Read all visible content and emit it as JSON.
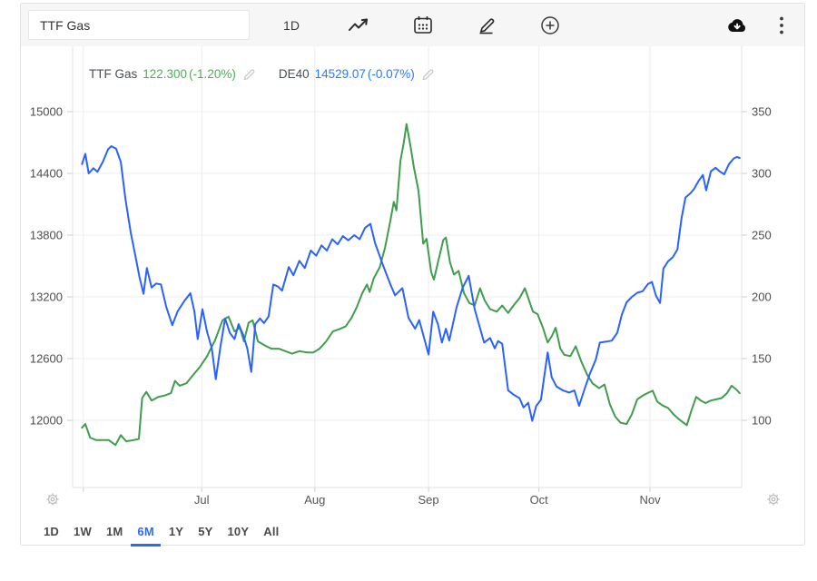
{
  "toolbar": {
    "symbol_input": {
      "value": "TTF Gas"
    },
    "interval_label": "1D",
    "icons": [
      "line-chart",
      "calendar",
      "pencil",
      "plus-circle",
      "cloud-download",
      "kebab-menu"
    ]
  },
  "legend": [
    {
      "name": "TTF Gas",
      "last": "122.300",
      "change": "(-1.20%)",
      "color": "#4caf50"
    },
    {
      "name": "DE40",
      "last": "14529.07",
      "change": "(-0.07%)",
      "color": "#2979ff"
    }
  ],
  "ranges": {
    "options": [
      "1D",
      "1W",
      "1M",
      "6M",
      "1Y",
      "5Y",
      "10Y",
      "All"
    ],
    "active": "6M"
  },
  "chart_data": {
    "type": "line",
    "grid": true,
    "legend_position": "top-left",
    "x_axis": {
      "months": [
        {
          "label": "",
          "f": 0.016
        },
        {
          "label": "Jul",
          "f": 0.193
        },
        {
          "label": "Aug",
          "f": 0.362
        },
        {
          "label": "Sep",
          "f": 0.532
        },
        {
          "label": "Oct",
          "f": 0.697
        },
        {
          "label": "Nov",
          "f": 0.863
        }
      ]
    },
    "left_axis": {
      "ticks": [
        15000,
        14400,
        13800,
        13200,
        12600,
        12000
      ],
      "top_value": 15000,
      "bottom_value": 12000
    },
    "right_axis": {
      "ticks": [
        350,
        300,
        250,
        200,
        150,
        100
      ],
      "top_value": 350,
      "bottom_value": 100
    },
    "series": [
      {
        "name": "TTF Gas",
        "axis": "right",
        "color": "#3f9d4c",
        "last": 122.3,
        "change_pct": -1.2,
        "points": [
          [
            0.014,
            94
          ],
          [
            0.019,
            97
          ],
          [
            0.026,
            86
          ],
          [
            0.035,
            84
          ],
          [
            0.045,
            84
          ],
          [
            0.054,
            84
          ],
          [
            0.064,
            80
          ],
          [
            0.072,
            88
          ],
          [
            0.08,
            83
          ],
          [
            0.091,
            84
          ],
          [
            0.099,
            85
          ],
          [
            0.104,
            118
          ],
          [
            0.11,
            123
          ],
          [
            0.118,
            116
          ],
          [
            0.128,
            119
          ],
          [
            0.137,
            120
          ],
          [
            0.147,
            122
          ],
          [
            0.153,
            132
          ],
          [
            0.16,
            128
          ],
          [
            0.17,
            130
          ],
          [
            0.179,
            136
          ],
          [
            0.19,
            143
          ],
          [
            0.201,
            152
          ],
          [
            0.213,
            165
          ],
          [
            0.224,
            181
          ],
          [
            0.233,
            184
          ],
          [
            0.242,
            172
          ],
          [
            0.25,
            175
          ],
          [
            0.256,
            164
          ],
          [
            0.263,
            179
          ],
          [
            0.269,
            181
          ],
          [
            0.277,
            164
          ],
          [
            0.286,
            161
          ],
          [
            0.297,
            158
          ],
          [
            0.308,
            158
          ],
          [
            0.318,
            156
          ],
          [
            0.328,
            154
          ],
          [
            0.339,
            156
          ],
          [
            0.35,
            155
          ],
          [
            0.36,
            155
          ],
          [
            0.369,
            158
          ],
          [
            0.379,
            164
          ],
          [
            0.389,
            172
          ],
          [
            0.399,
            174
          ],
          [
            0.408,
            176
          ],
          [
            0.417,
            183
          ],
          [
            0.425,
            192
          ],
          [
            0.433,
            203
          ],
          [
            0.44,
            210
          ],
          [
            0.444,
            204
          ],
          [
            0.45,
            215
          ],
          [
            0.459,
            224
          ],
          [
            0.467,
            240
          ],
          [
            0.475,
            262
          ],
          [
            0.48,
            277
          ],
          [
            0.484,
            270
          ],
          [
            0.49,
            310
          ],
          [
            0.495,
            325
          ],
          [
            0.499,
            340
          ],
          [
            0.505,
            322
          ],
          [
            0.51,
            305
          ],
          [
            0.517,
            286
          ],
          [
            0.524,
            243
          ],
          [
            0.529,
            247
          ],
          [
            0.536,
            220
          ],
          [
            0.54,
            214
          ],
          [
            0.547,
            230
          ],
          [
            0.554,
            246
          ],
          [
            0.558,
            248
          ],
          [
            0.564,
            228
          ],
          [
            0.57,
            218
          ],
          [
            0.577,
            221
          ],
          [
            0.585,
            203
          ],
          [
            0.593,
            195
          ],
          [
            0.601,
            193
          ],
          [
            0.609,
            207
          ],
          [
            0.616,
            197
          ],
          [
            0.624,
            190
          ],
          [
            0.634,
            188
          ],
          [
            0.642,
            193
          ],
          [
            0.651,
            187
          ],
          [
            0.659,
            193
          ],
          [
            0.668,
            199
          ],
          [
            0.676,
            207
          ],
          [
            0.688,
            188
          ],
          [
            0.695,
            186
          ],
          [
            0.703,
            175
          ],
          [
            0.71,
            163
          ],
          [
            0.716,
            168
          ],
          [
            0.722,
            175
          ],
          [
            0.729,
            158
          ],
          [
            0.735,
            153
          ],
          [
            0.744,
            152
          ],
          [
            0.752,
            160
          ],
          [
            0.76,
            148
          ],
          [
            0.769,
            137
          ],
          [
            0.777,
            130
          ],
          [
            0.787,
            126
          ],
          [
            0.795,
            129
          ],
          [
            0.803,
            113
          ],
          [
            0.811,
            103
          ],
          [
            0.819,
            98
          ],
          [
            0.828,
            97
          ],
          [
            0.836,
            105
          ],
          [
            0.844,
            117
          ],
          [
            0.852,
            120
          ],
          [
            0.859,
            122
          ],
          [
            0.867,
            124
          ],
          [
            0.874,
            115
          ],
          [
            0.882,
            112
          ],
          [
            0.89,
            110
          ],
          [
            0.898,
            105
          ],
          [
            0.906,
            101
          ],
          [
            0.913,
            98
          ],
          [
            0.918,
            96
          ],
          [
            0.925,
            108
          ],
          [
            0.932,
            119
          ],
          [
            0.939,
            116
          ],
          [
            0.946,
            114
          ],
          [
            0.954,
            116
          ],
          [
            0.962,
            117
          ],
          [
            0.97,
            118
          ],
          [
            0.978,
            122
          ],
          [
            0.985,
            128
          ],
          [
            0.992,
            125
          ],
          [
            0.997,
            122
          ]
        ]
      },
      {
        "name": "DE40",
        "axis": "left",
        "color": "#2962ff",
        "last": 14529.07,
        "change_pct": -0.07,
        "points": [
          [
            0.014,
            14490
          ],
          [
            0.019,
            14590
          ],
          [
            0.024,
            14400
          ],
          [
            0.031,
            14450
          ],
          [
            0.037,
            14415
          ],
          [
            0.045,
            14510
          ],
          [
            0.053,
            14635
          ],
          [
            0.058,
            14665
          ],
          [
            0.065,
            14640
          ],
          [
            0.072,
            14510
          ],
          [
            0.079,
            14150
          ],
          [
            0.087,
            13820
          ],
          [
            0.095,
            13560
          ],
          [
            0.1,
            13390
          ],
          [
            0.106,
            13230
          ],
          [
            0.111,
            13480
          ],
          [
            0.118,
            13290
          ],
          [
            0.125,
            13330
          ],
          [
            0.132,
            13320
          ],
          [
            0.14,
            13100
          ],
          [
            0.149,
            12925
          ],
          [
            0.157,
            13060
          ],
          [
            0.167,
            13160
          ],
          [
            0.176,
            13235
          ],
          [
            0.182,
            13060
          ],
          [
            0.187,
            12790
          ],
          [
            0.194,
            13080
          ],
          [
            0.201,
            12860
          ],
          [
            0.208,
            12700
          ],
          [
            0.214,
            12400
          ],
          [
            0.221,
            12720
          ],
          [
            0.228,
            12990
          ],
          [
            0.235,
            12850
          ],
          [
            0.242,
            12790
          ],
          [
            0.248,
            12935
          ],
          [
            0.255,
            12830
          ],
          [
            0.261,
            12700
          ],
          [
            0.267,
            12470
          ],
          [
            0.273,
            12935
          ],
          [
            0.28,
            12990
          ],
          [
            0.286,
            12945
          ],
          [
            0.293,
            13010
          ],
          [
            0.3,
            13320
          ],
          [
            0.307,
            13300
          ],
          [
            0.313,
            13260
          ],
          [
            0.323,
            13490
          ],
          [
            0.33,
            13410
          ],
          [
            0.339,
            13550
          ],
          [
            0.347,
            13480
          ],
          [
            0.356,
            13650
          ],
          [
            0.364,
            13600
          ],
          [
            0.372,
            13700
          ],
          [
            0.38,
            13650
          ],
          [
            0.388,
            13760
          ],
          [
            0.396,
            13710
          ],
          [
            0.404,
            13790
          ],
          [
            0.412,
            13750
          ],
          [
            0.421,
            13800
          ],
          [
            0.429,
            13760
          ],
          [
            0.437,
            13870
          ],
          [
            0.445,
            13910
          ],
          [
            0.452,
            13725
          ],
          [
            0.464,
            13505
          ],
          [
            0.475,
            13320
          ],
          [
            0.482,
            13215
          ],
          [
            0.493,
            13285
          ],
          [
            0.502,
            12995
          ],
          [
            0.512,
            12890
          ],
          [
            0.518,
            12975
          ],
          [
            0.532,
            12640
          ],
          [
            0.539,
            13055
          ],
          [
            0.546,
            12935
          ],
          [
            0.552,
            12755
          ],
          [
            0.558,
            12890
          ],
          [
            0.563,
            12775
          ],
          [
            0.574,
            13100
          ],
          [
            0.583,
            13290
          ],
          [
            0.592,
            13405
          ],
          [
            0.601,
            13080
          ],
          [
            0.615,
            12755
          ],
          [
            0.624,
            12800
          ],
          [
            0.631,
            12700
          ],
          [
            0.636,
            12770
          ],
          [
            0.642,
            12745
          ],
          [
            0.651,
            12290
          ],
          [
            0.659,
            12250
          ],
          [
            0.668,
            12215
          ],
          [
            0.674,
            12125
          ],
          [
            0.681,
            12170
          ],
          [
            0.687,
            11995
          ],
          [
            0.693,
            12140
          ],
          [
            0.7,
            12200
          ],
          [
            0.71,
            12660
          ],
          [
            0.716,
            12420
          ],
          [
            0.723,
            12330
          ],
          [
            0.733,
            12290
          ],
          [
            0.742,
            12270
          ],
          [
            0.75,
            12290
          ],
          [
            0.757,
            12140
          ],
          [
            0.765,
            12300
          ],
          [
            0.773,
            12450
          ],
          [
            0.782,
            12590
          ],
          [
            0.788,
            12755
          ],
          [
            0.798,
            12765
          ],
          [
            0.806,
            12775
          ],
          [
            0.814,
            12850
          ],
          [
            0.821,
            13030
          ],
          [
            0.828,
            13145
          ],
          [
            0.836,
            13200
          ],
          [
            0.844,
            13240
          ],
          [
            0.852,
            13255
          ],
          [
            0.86,
            13325
          ],
          [
            0.866,
            13345
          ],
          [
            0.872,
            13210
          ],
          [
            0.878,
            13140
          ],
          [
            0.883,
            13475
          ],
          [
            0.89,
            13545
          ],
          [
            0.897,
            13585
          ],
          [
            0.904,
            13660
          ],
          [
            0.91,
            13960
          ],
          [
            0.916,
            14165
          ],
          [
            0.923,
            14205
          ],
          [
            0.929,
            14250
          ],
          [
            0.936,
            14330
          ],
          [
            0.942,
            14385
          ],
          [
            0.947,
            14235
          ],
          [
            0.954,
            14420
          ],
          [
            0.961,
            14455
          ],
          [
            0.967,
            14420
          ],
          [
            0.974,
            14390
          ],
          [
            0.981,
            14490
          ],
          [
            0.988,
            14545
          ],
          [
            0.993,
            14560
          ],
          [
            0.997,
            14550
          ]
        ]
      }
    ]
  }
}
